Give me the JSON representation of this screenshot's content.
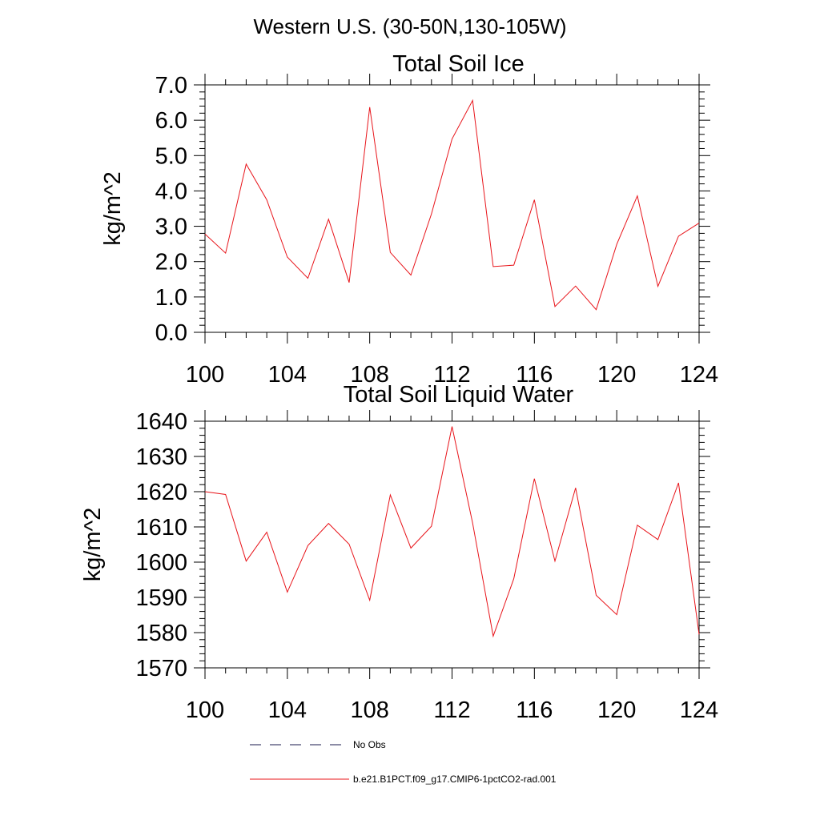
{
  "figure": {
    "title": "Western U.S. (30-50N,130-105W)"
  },
  "chart_data": [
    {
      "type": "line",
      "title": "Total Soil Ice",
      "xlabel": "",
      "ylabel": "kg/m^2",
      "xlim": [
        100,
        124
      ],
      "ylim": [
        0,
        7
      ],
      "x_ticks": [
        "100",
        "104",
        "108",
        "112",
        "116",
        "120",
        "124"
      ],
      "y_ticks": [
        "0.0",
        "1.0",
        "2.0",
        "3.0",
        "4.0",
        "5.0",
        "6.0",
        "7.0"
      ],
      "series": [
        {
          "color": "#e8141a",
          "x": [
            100,
            101,
            102,
            103,
            104,
            105,
            106,
            107,
            108,
            109,
            110,
            111,
            112,
            113,
            114,
            115,
            116,
            117,
            118,
            119,
            120,
            121,
            122,
            123,
            124
          ],
          "values": [
            2.78,
            2.24,
            4.76,
            3.75,
            2.13,
            1.53,
            3.2,
            1.41,
            6.37,
            2.26,
            1.62,
            3.35,
            5.47,
            6.56,
            1.86,
            1.9,
            3.75,
            0.73,
            1.31,
            0.64,
            2.49,
            3.86,
            1.3,
            2.72,
            3.09
          ]
        }
      ]
    },
    {
      "type": "line",
      "title": "Total Soil Liquid Water",
      "xlabel": "",
      "ylabel": "kg/m^2",
      "xlim": [
        100,
        124
      ],
      "ylim": [
        1570,
        1640
      ],
      "x_ticks": [
        "100",
        "104",
        "108",
        "112",
        "116",
        "120",
        "124"
      ],
      "y_ticks": [
        "1570",
        "1580",
        "1590",
        "1600",
        "1610",
        "1620",
        "1630",
        "1640"
      ],
      "series": [
        {
          "color": "#e8141a",
          "x": [
            100,
            101,
            102,
            103,
            104,
            105,
            106,
            107,
            108,
            109,
            110,
            111,
            112,
            113,
            114,
            115,
            116,
            117,
            118,
            119,
            120,
            121,
            122,
            123,
            124
          ],
          "values": [
            1620.0,
            1619.2,
            1600.3,
            1608.5,
            1591.5,
            1604.7,
            1611.0,
            1605.1,
            1589.2,
            1619.1,
            1604.0,
            1610.2,
            1638.5,
            1611.1,
            1579.0,
            1595.3,
            1623.7,
            1600.3,
            1621.1,
            1590.6,
            1585.1,
            1610.5,
            1606.4,
            1622.5,
            1579.5
          ]
        }
      ]
    }
  ],
  "legend": {
    "entries": [
      {
        "label": "No Obs",
        "style": "dashed",
        "color": "#1a1a4d"
      },
      {
        "label": "b.e21.B1PCT.f09_g17.CMIP6-1pctCO2-rad.001",
        "style": "solid",
        "color": "#e8141a"
      }
    ]
  }
}
